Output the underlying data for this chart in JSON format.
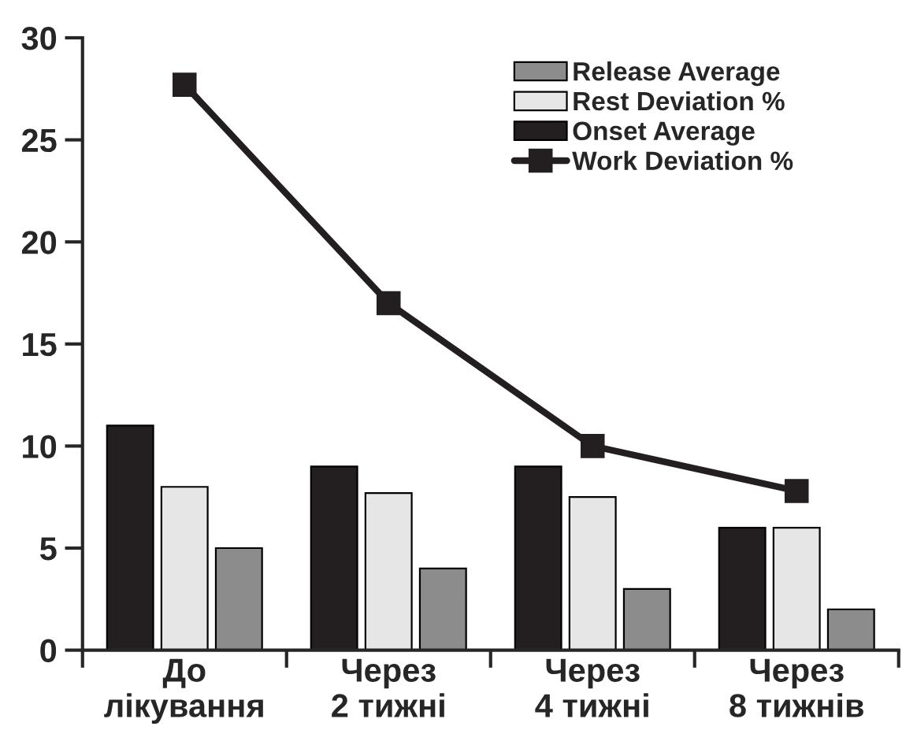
{
  "chart_data": {
    "type": "bar",
    "categories": [
      "До\nлікування",
      "Через\n2 тижні",
      "Через\n4 тижні",
      "Через\n8 тижнів"
    ],
    "series": [
      {
        "name": "Release Average",
        "color": "#8c8c8c",
        "values": [
          5,
          4,
          3,
          2
        ]
      },
      {
        "name": "Rest Deviation %",
        "color": "#e6e6e6",
        "values": [
          8,
          7.7,
          7.5,
          6
        ]
      },
      {
        "name": "Onset Average",
        "color": "#231f20",
        "values": [
          11,
          9,
          9,
          6
        ]
      },
      {
        "name": "Work Deviation %",
        "type": "line",
        "color": "#231f20",
        "values": [
          27.7,
          17,
          10,
          7.8
        ],
        "marker": "square",
        "line_style": "solid"
      }
    ],
    "ylim": [
      0,
      30
    ],
    "yticks": [
      0,
      5,
      10,
      15,
      20,
      25,
      30
    ],
    "grid": false,
    "legend": "top right"
  }
}
